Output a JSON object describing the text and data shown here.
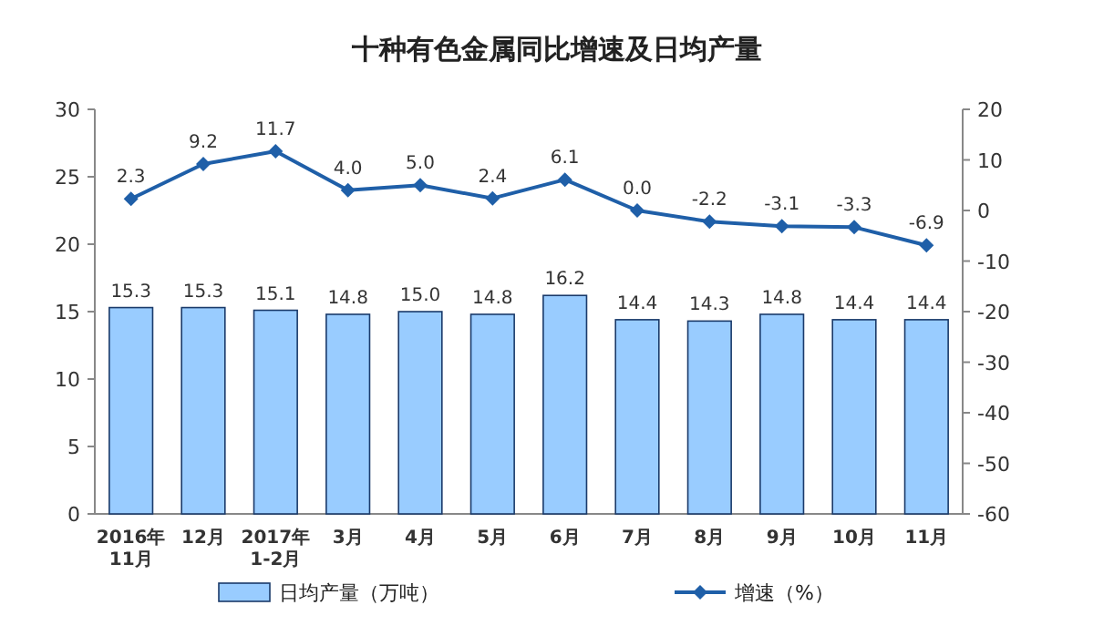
{
  "chart_data": {
    "type": "bar",
    "title": "十种有色金属同比增速及日均产量",
    "categories": [
      "2016年\n11月",
      "12月",
      "2017年\n1-2月",
      "3月",
      "4月",
      "5月",
      "6月",
      "7月",
      "8月",
      "9月",
      "10月",
      "11月"
    ],
    "series": [
      {
        "name": "日均产量（万吨）",
        "color": "#99ccff",
        "values": [
          15.3,
          15.3,
          15.1,
          14.8,
          15.0,
          14.8,
          16.2,
          14.4,
          14.3,
          14.8,
          14.4,
          14.4
        ],
        "value_labels": [
          "15.3",
          "15.3",
          "15.1",
          "14.8",
          "15.0",
          "14.8",
          "16.2",
          "14.4",
          "14.3",
          "14.8",
          "14.4",
          "14.4"
        ]
      },
      {
        "name": "增速（%）",
        "type": "line",
        "axis": "y2",
        "color": "#1f5fa8",
        "marker": "diamond",
        "values": [
          2.3,
          9.2,
          11.7,
          4.0,
          5.0,
          2.4,
          6.1,
          0.0,
          -2.2,
          -3.1,
          -3.3,
          -6.9
        ],
        "value_labels": [
          "2.3",
          "9.2",
          "11.7",
          "4.0",
          "5.0",
          "2.4",
          "6.1",
          "0.0",
          "-2.2",
          "-3.1",
          "-3.3",
          "-6.9"
        ]
      }
    ],
    "ylim": [
      0,
      30
    ],
    "yticks": [
      0,
      5,
      10,
      15,
      20,
      25,
      30
    ],
    "y2lim": [
      -60,
      20
    ],
    "y2ticks": [
      -60,
      -50,
      -40,
      -30,
      -20,
      -10,
      0,
      10,
      20
    ],
    "legend": "bottom"
  }
}
